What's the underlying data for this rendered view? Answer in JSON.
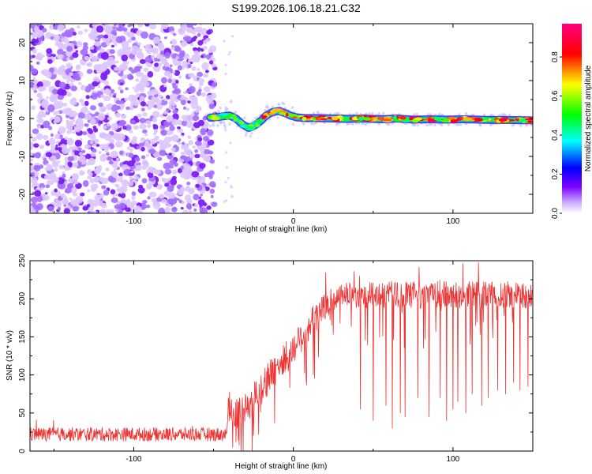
{
  "title": "S199.2026.106.18.21.C32",
  "chart_data": [
    {
      "type": "heatmap",
      "name": "spectrogram",
      "xlabel": "Height of straight line (km)",
      "ylabel": "Frequency (Hz)",
      "xlim": [
        -165,
        150
      ],
      "ylim": [
        -25,
        25
      ],
      "xticks": [
        -100,
        0,
        100
      ],
      "yticks": [
        -20,
        -10,
        0,
        10,
        20
      ],
      "noise_region_x": [
        -165,
        -52
      ],
      "signal_start_x": -52,
      "signal_track": [
        [
          -52,
          0.2
        ],
        [
          -45,
          0.5
        ],
        [
          -40,
          0.8
        ],
        [
          -36,
          0.0
        ],
        [
          -32,
          -1.5
        ],
        [
          -28,
          -2.5
        ],
        [
          -24,
          -1.8
        ],
        [
          -20,
          -0.5
        ],
        [
          -17,
          0.8
        ],
        [
          -13,
          1.7
        ],
        [
          -9,
          2.0
        ],
        [
          -5,
          1.4
        ],
        [
          -2,
          0.8
        ],
        [
          2,
          0.3
        ],
        [
          8,
          0.1
        ],
        [
          15,
          0.1
        ],
        [
          25,
          0.0
        ],
        [
          35,
          -0.1
        ],
        [
          45,
          0.0
        ],
        [
          55,
          -0.2
        ],
        [
          65,
          0.0
        ],
        [
          75,
          -0.3
        ],
        [
          85,
          -0.2
        ],
        [
          95,
          -0.3
        ],
        [
          105,
          -0.2
        ],
        [
          115,
          -0.3
        ],
        [
          125,
          -0.4
        ],
        [
          135,
          -0.4
        ],
        [
          150,
          -0.5
        ]
      ],
      "colorbar": {
        "label": "Normalized spectral amplitude",
        "range": [
          0.0,
          0.97
        ],
        "ticks": [
          0.0,
          0.2,
          0.4,
          0.6,
          0.8
        ],
        "colors": [
          "#ffffff",
          "#7c00ff",
          "#0000ff",
          "#00ffff",
          "#00ff00",
          "#ffff00",
          "#ff0000",
          "#ff0080"
        ]
      }
    },
    {
      "type": "line",
      "name": "snr",
      "xlabel": "Height of straight line (km)",
      "ylabel": "SNR (10 * v/v)",
      "xlim": [
        -165,
        150
      ],
      "ylim": [
        0,
        250
      ],
      "xticks": [
        -100,
        0,
        100
      ],
      "yticks": [
        0,
        50,
        100,
        150,
        200,
        250
      ],
      "color": "#ee3333",
      "trend": [
        [
          -165,
          22
        ],
        [
          -100,
          22
        ],
        [
          -60,
          22
        ],
        [
          -42,
          22
        ],
        [
          -41,
          60
        ],
        [
          -35,
          50
        ],
        [
          -28,
          60
        ],
        [
          -20,
          85
        ],
        [
          -10,
          110
        ],
        [
          0,
          135
        ],
        [
          10,
          165
        ],
        [
          20,
          190
        ],
        [
          30,
          205
        ],
        [
          50,
          205
        ],
        [
          80,
          205
        ],
        [
          110,
          205
        ],
        [
          150,
          205
        ]
      ],
      "noise_amplitude": [
        [
          -165,
          9
        ],
        [
          -42,
          9
        ],
        [
          -41,
          20
        ],
        [
          -20,
          22
        ],
        [
          10,
          20
        ],
        [
          30,
          16
        ],
        [
          60,
          18
        ],
        [
          150,
          18
        ]
      ],
      "dips": [
        [
          -38,
          5
        ],
        [
          -36,
          12
        ],
        [
          -34,
          8
        ],
        [
          42,
          55
        ],
        [
          50,
          40
        ],
        [
          58,
          60
        ],
        [
          62,
          30
        ],
        [
          67,
          50
        ],
        [
          70,
          45
        ],
        [
          78,
          70
        ],
        [
          85,
          45
        ],
        [
          92,
          70
        ],
        [
          96,
          40
        ],
        [
          100,
          55
        ],
        [
          103,
          65
        ],
        [
          108,
          50
        ],
        [
          112,
          75
        ],
        [
          118,
          60
        ],
        [
          122,
          70
        ],
        [
          128,
          80
        ],
        [
          133,
          75
        ],
        [
          138,
          90
        ],
        [
          142,
          80
        ],
        [
          147,
          85
        ]
      ]
    }
  ]
}
